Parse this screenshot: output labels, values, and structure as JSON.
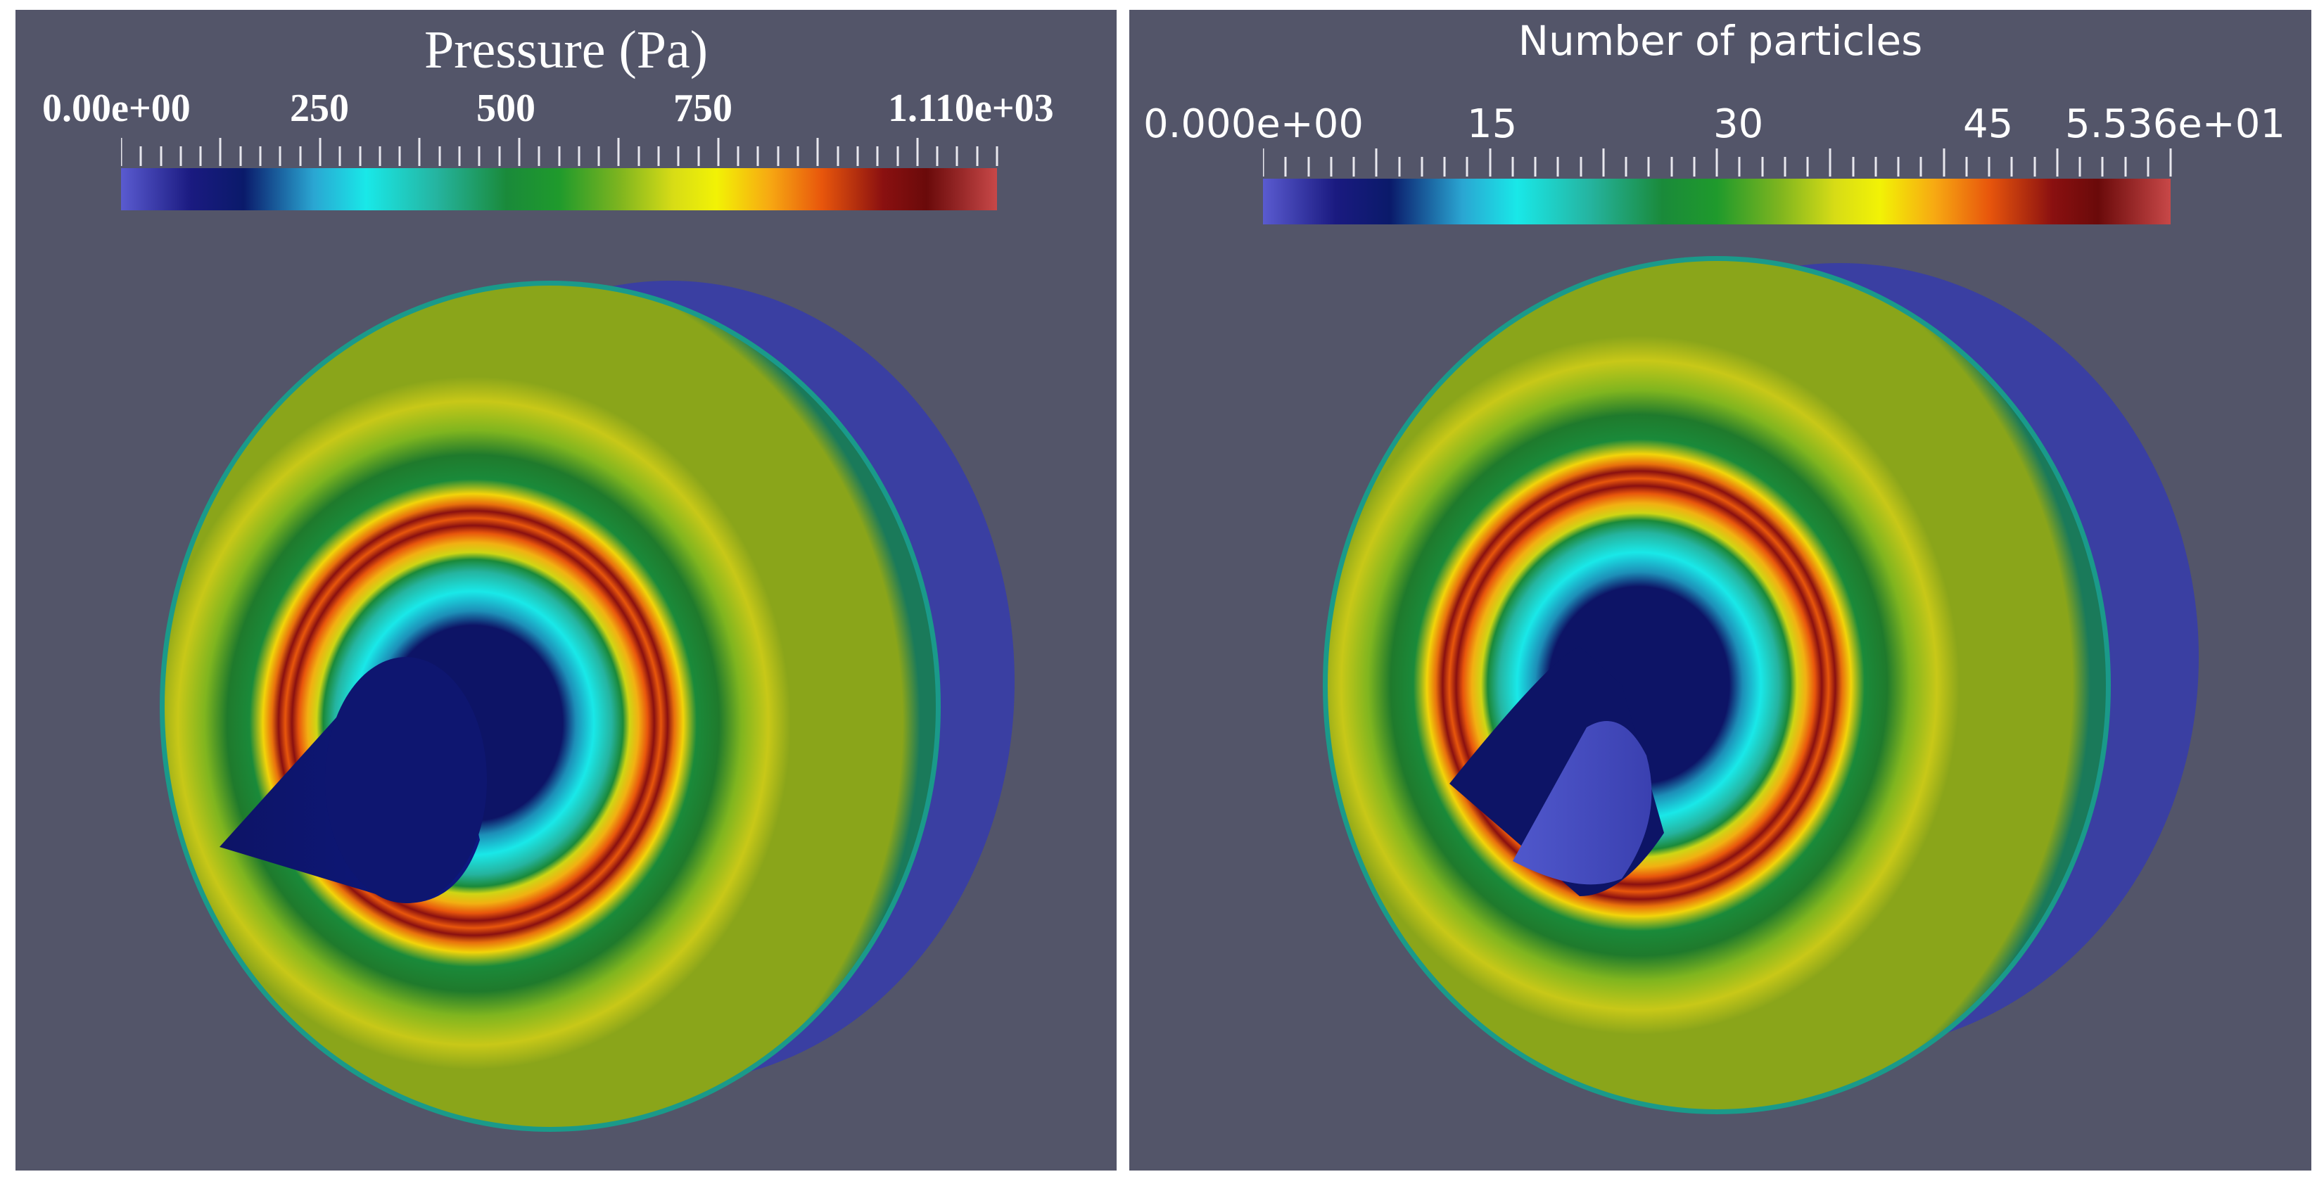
{
  "left": {
    "title": "Pressure (Pa)",
    "ticks": [
      "0.00e+00",
      "250",
      "500",
      "750",
      "1.110e+03"
    ]
  },
  "right": {
    "title": "Number of particles",
    "ticks": [
      "0.000e+00",
      "15",
      "30",
      "45",
      "5.536e+01"
    ]
  },
  "colors": {
    "background": "#535569",
    "colormap": [
      "#5a5bd0",
      "#1a1a80",
      "#0a1a6a",
      "#2aa6d2",
      "#19e8e8",
      "#25b4a0",
      "#1a8a3a",
      "#1f9a2c",
      "#7fb51f",
      "#d7dc16",
      "#f2f205",
      "#f7a912",
      "#e8560c",
      "#8a1010",
      "#6a0a0a",
      "#c84848"
    ],
    "disc_green": "#8aa51a",
    "back_rim": "#3a3fa2",
    "cone_dark": "#0d1466",
    "cone_tip_light": "#5058cc"
  }
}
